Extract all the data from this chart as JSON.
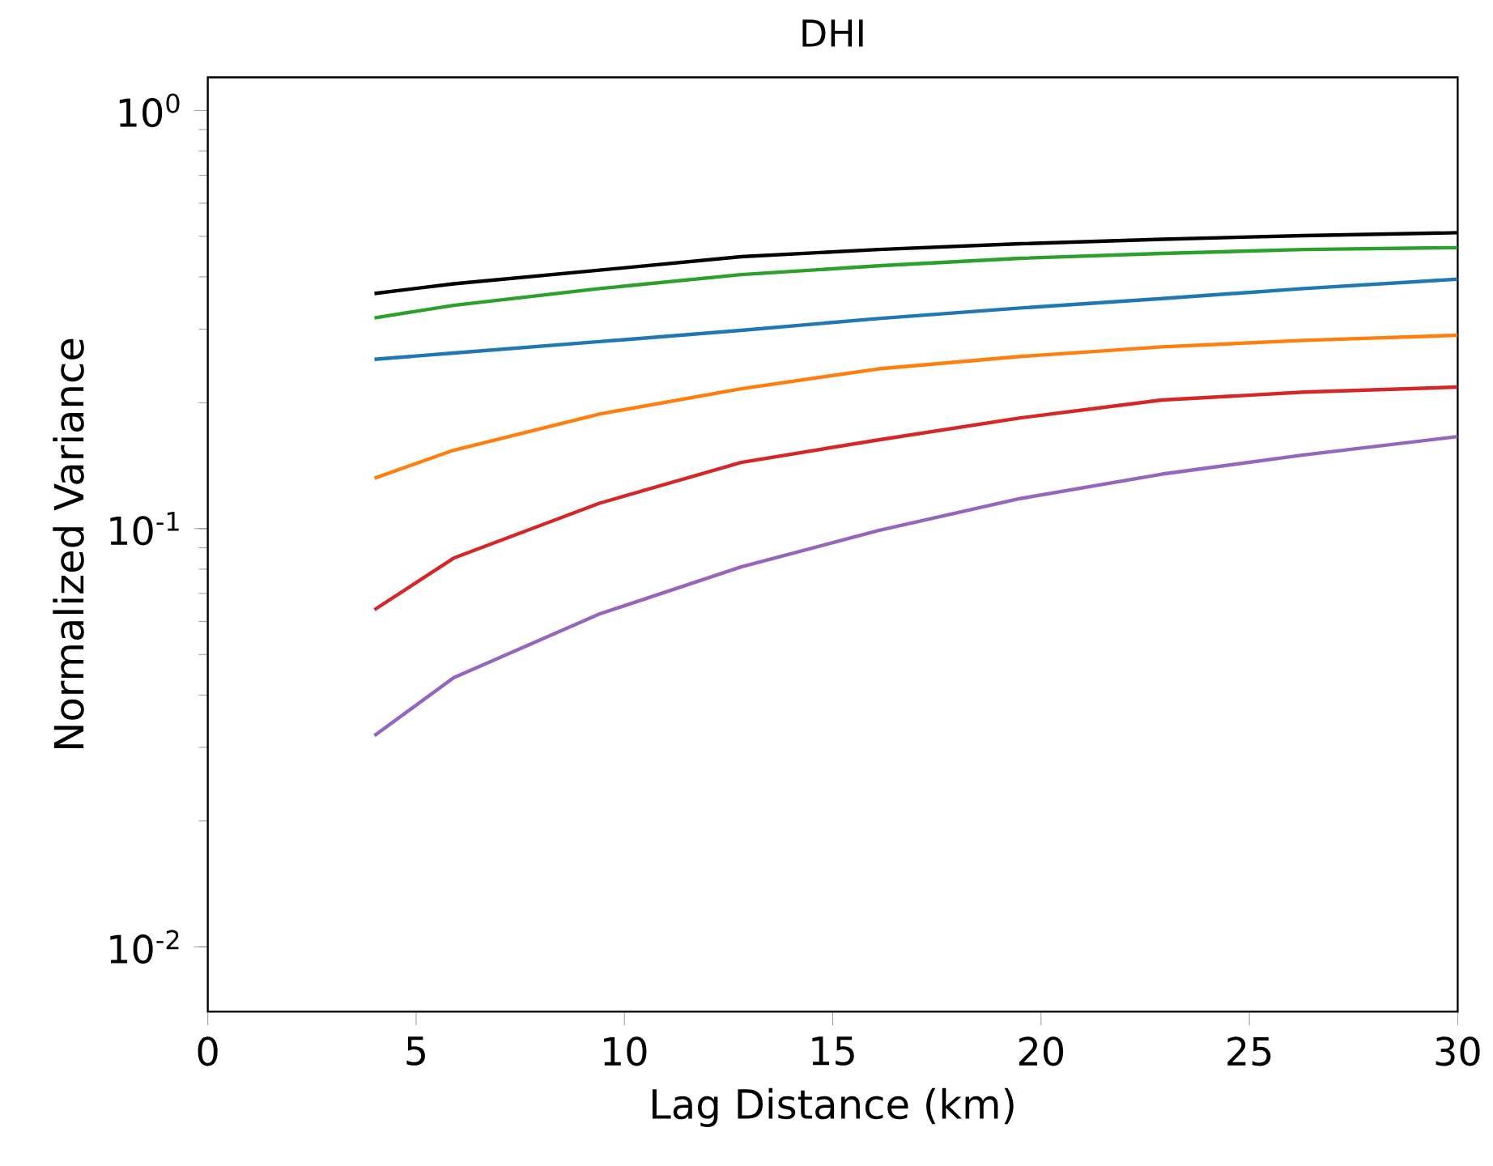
{
  "chart_data": {
    "type": "line",
    "title": "DHI",
    "xlabel": "Lag Distance (km)",
    "ylabel": "Normalized Variance",
    "log": "y",
    "grid": false,
    "marker": "none",
    "line_style": "solid",
    "x": [
      4,
      5.9,
      9.4,
      12.8,
      16.1,
      19.5,
      22.9,
      26.3,
      30
    ],
    "xlim": [
      0,
      30
    ],
    "xticks": [
      0,
      5,
      10,
      15,
      20,
      25,
      30
    ],
    "ylim": [
      0.007,
      1.2
    ],
    "yticks": [
      {
        "value": 0.01,
        "label": "10$^{-2}$"
      },
      {
        "value": 0.1,
        "label": "10$^{-1}$"
      },
      {
        "value": 1,
        "label": "10$^{0}$"
      }
    ],
    "series": [
      {
        "color": "#000000",
        "values": [
          0.365,
          0.385,
          0.415,
          0.447,
          0.465,
          0.48,
          0.492,
          0.502,
          0.51
        ]
      },
      {
        "color": "#2ca02c",
        "values": [
          0.319,
          0.342,
          0.375,
          0.405,
          0.425,
          0.443,
          0.455,
          0.465,
          0.47
        ]
      },
      {
        "color": "#1f77b4",
        "values": [
          0.254,
          0.263,
          0.28,
          0.298,
          0.318,
          0.337,
          0.355,
          0.375,
          0.395
        ]
      },
      {
        "color": "#ff7f0e",
        "values": [
          0.132,
          0.154,
          0.188,
          0.216,
          0.241,
          0.258,
          0.272,
          0.282,
          0.29
        ]
      },
      {
        "color": "#d62728",
        "values": [
          0.064,
          0.085,
          0.115,
          0.144,
          0.163,
          0.184,
          0.203,
          0.212,
          0.218
        ]
      },
      {
        "color": "#9467bd",
        "values": [
          0.032,
          0.044,
          0.0625,
          0.081,
          0.099,
          0.118,
          0.135,
          0.15,
          0.166
        ]
      }
    ]
  }
}
